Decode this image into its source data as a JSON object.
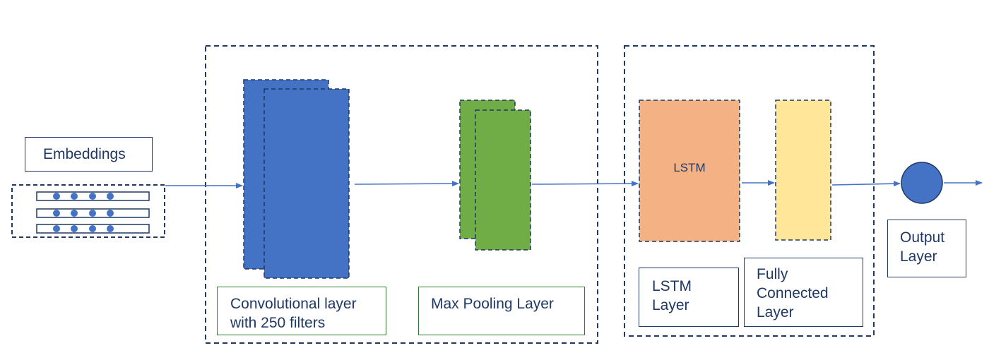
{
  "labels": {
    "embeddings": "Embeddings",
    "conv_line1": "Convolutional layer",
    "conv_line2": "with 250 filters",
    "pool": "Max Pooling Layer",
    "lstm_inner": "LSTM",
    "lstm_line1": "LSTM",
    "lstm_line2": "Layer",
    "fc_line1": "Fully",
    "fc_line2": "Connected",
    "fc_line3": "Layer",
    "output_line1": "Output",
    "output_line2": "Layer"
  },
  "colors": {
    "conv_block": "#4472c4",
    "pool_block": "#70ad47",
    "lstm_block": "#f4b183",
    "fc_block": "#ffe699",
    "output_node": "#4472c4",
    "dashed_border": "#1f3864",
    "arrow": "#4472c4",
    "label_text": "#1f3864",
    "label_border_green": "#2e7d32"
  }
}
